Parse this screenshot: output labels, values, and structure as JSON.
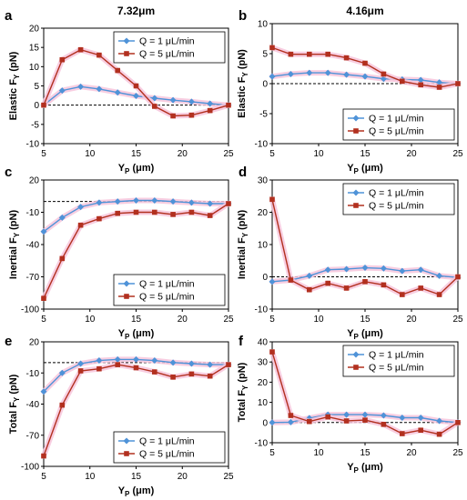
{
  "colors": {
    "blue": "#4f93d8",
    "red": "#b2301f",
    "shade": "#f7c6dc",
    "axis": "#000000",
    "zero": "#000000"
  },
  "chart_data": [
    {
      "id": "a",
      "type": "line",
      "letter": "a",
      "title": "7.32μm",
      "ylabel": "Elastic F",
      "ylabel_sub": "Y",
      "ylabel_tail": " (pN)",
      "xlabel": "Y",
      "xlabel_sub": "P",
      "xlabel_tail": " (μm)",
      "xlim": [
        5,
        25
      ],
      "ylim": [
        -10,
        20
      ],
      "xticks": [
        "5",
        "10",
        "15",
        "20",
        "25"
      ],
      "yticks": [
        "-10",
        "-5",
        "0",
        "5",
        "10",
        "15",
        "20"
      ],
      "legend": {
        "position": "top-right",
        "entries": [
          "Q = 1 μL/min",
          "Q = 5 μL/min"
        ]
      },
      "series": [
        {
          "name": "Q = 1 μL/min",
          "x": [
            5,
            7,
            9,
            11,
            13,
            15,
            17,
            19,
            21,
            23,
            25
          ],
          "y": [
            0,
            3.8,
            4.8,
            4.2,
            3.3,
            2.4,
            1.8,
            1.3,
            0.9,
            0.4,
            0
          ]
        },
        {
          "name": "Q = 5 μL/min",
          "x": [
            5,
            7,
            9,
            11,
            13,
            15,
            17,
            19,
            21,
            23,
            25
          ],
          "y": [
            0,
            11.8,
            14.4,
            13.0,
            9.0,
            5.0,
            -0.3,
            -2.8,
            -2.6,
            -1.4,
            0
          ]
        }
      ]
    },
    {
      "id": "b",
      "type": "line",
      "letter": "b",
      "title": "4.16μm",
      "ylabel": "Elastic F",
      "ylabel_sub": "Y",
      "ylabel_tail": " (pN)",
      "xlabel": "Y",
      "xlabel_sub": "P",
      "xlabel_tail": " (μm)",
      "xlim": [
        5,
        25
      ],
      "ylim": [
        -10,
        10
      ],
      "xticks": [
        "5",
        "10",
        "15",
        "20",
        "25"
      ],
      "yticks": [
        "-10",
        "-5",
        "0",
        "5",
        "10"
      ],
      "legend": {
        "position": "bottom-right",
        "entries": [
          "Q = 1 μL/min",
          "Q = 5 μL/min"
        ]
      },
      "series": [
        {
          "name": "Q = 1 μL/min",
          "x": [
            5,
            7,
            9,
            11,
            13,
            15,
            17,
            19,
            21,
            23,
            25
          ],
          "y": [
            1.2,
            1.6,
            1.8,
            1.8,
            1.5,
            1.2,
            0.8,
            0.7,
            0.6,
            0.2,
            0
          ]
        },
        {
          "name": "Q = 5 μL/min",
          "x": [
            5,
            7,
            9,
            11,
            13,
            15,
            17,
            19,
            21,
            23,
            25
          ],
          "y": [
            6.0,
            4.9,
            4.9,
            4.9,
            4.3,
            3.4,
            1.6,
            0.4,
            -0.2,
            -0.6,
            0
          ]
        }
      ]
    },
    {
      "id": "c",
      "type": "line",
      "letter": "c",
      "title": "",
      "ylabel": "Inertial F",
      "ylabel_sub": "Y",
      "ylabel_tail": " (pN)",
      "xlabel": "Y",
      "xlabel_sub": "P",
      "xlabel_tail": " (μm)",
      "xlim": [
        5,
        25
      ],
      "ylim": [
        -100,
        20
      ],
      "xticks": [
        "5",
        "10",
        "15",
        "20",
        "25"
      ],
      "yticks": [
        "-100",
        "-70",
        "-40",
        "-10",
        "20"
      ],
      "legend": {
        "position": "bottom-right",
        "entries": [
          "Q = 1 μL/min",
          "Q = 5 μL/min"
        ]
      },
      "series": [
        {
          "name": "Q = 1 μL/min",
          "x": [
            5,
            7,
            9,
            11,
            13,
            15,
            17,
            19,
            21,
            23,
            25
          ],
          "y": [
            -28,
            -15,
            -5,
            -1,
            0,
            1,
            1,
            0,
            -1,
            -2,
            -2
          ]
        },
        {
          "name": "Q = 5 μL/min",
          "x": [
            5,
            7,
            9,
            11,
            13,
            15,
            17,
            19,
            21,
            23,
            25
          ],
          "y": [
            -90,
            -53,
            -22,
            -16,
            -11,
            -10,
            -10,
            -12,
            -10,
            -13,
            -2
          ]
        }
      ]
    },
    {
      "id": "d",
      "type": "line",
      "letter": "d",
      "title": "",
      "ylabel": "Inertial F",
      "ylabel_sub": "Y",
      "ylabel_tail": " (pN)",
      "xlabel": "Y",
      "xlabel_sub": "P",
      "xlabel_tail": " (μm)",
      "xlim": [
        5,
        25
      ],
      "ylim": [
        -10,
        30
      ],
      "xticks": [
        "5",
        "10",
        "15",
        "20",
        "25"
      ],
      "yticks": [
        "-10",
        "0",
        "10",
        "20",
        "30"
      ],
      "legend": {
        "position": "top-right",
        "entries": [
          "Q = 1 μL/min",
          "Q = 5 μL/min"
        ]
      },
      "series": [
        {
          "name": "Q = 1 μL/min",
          "x": [
            5,
            7,
            9,
            11,
            13,
            15,
            17,
            19,
            21,
            23,
            25
          ],
          "y": [
            -1.5,
            -1,
            0.3,
            2.2,
            2.4,
            2.8,
            2.6,
            1.8,
            2.2,
            0.3,
            -0.2
          ]
        },
        {
          "name": "Q = 5 μL/min",
          "x": [
            5,
            7,
            9,
            11,
            13,
            15,
            17,
            19,
            21,
            23,
            25
          ],
          "y": [
            24,
            -1,
            -4,
            -2,
            -3.5,
            -1.5,
            -2.5,
            -5.5,
            -3.5,
            -5.5,
            0
          ]
        }
      ]
    },
    {
      "id": "e",
      "type": "line",
      "letter": "e",
      "title": "",
      "ylabel": "Total F",
      "ylabel_sub": "Y",
      "ylabel_tail": " (pN)",
      "xlabel": "Y",
      "xlabel_sub": "P",
      "xlabel_tail": " (μm)",
      "xlim": [
        5,
        25
      ],
      "ylim": [
        -100,
        20
      ],
      "xticks": [
        "5",
        "10",
        "15",
        "20",
        "25"
      ],
      "yticks": [
        "-100",
        "-70",
        "-40",
        "-10",
        "20"
      ],
      "legend": {
        "position": "bottom-right",
        "entries": [
          "Q = 1 μL/min",
          "Q = 5 μL/min"
        ]
      },
      "series": [
        {
          "name": "Q = 1 μL/min",
          "x": [
            5,
            7,
            9,
            11,
            13,
            15,
            17,
            19,
            21,
            23,
            25
          ],
          "y": [
            -28,
            -10,
            -1,
            2,
            3,
            3,
            2,
            0,
            -1,
            -2,
            -2
          ]
        },
        {
          "name": "Q = 5 μL/min",
          "x": [
            5,
            7,
            9,
            11,
            13,
            15,
            17,
            19,
            21,
            23,
            25
          ],
          "y": [
            -90,
            -41,
            -8,
            -6,
            -2,
            -5,
            -9,
            -14,
            -11,
            -13,
            -2
          ]
        }
      ]
    },
    {
      "id": "f",
      "type": "line",
      "letter": "f",
      "title": "",
      "ylabel": "Total F",
      "ylabel_sub": "Y",
      "ylabel_tail": " (pN)",
      "xlabel": "Y",
      "xlabel_sub": "P",
      "xlabel_tail": " (μm)",
      "xlim": [
        5,
        25
      ],
      "ylim": [
        -10,
        40
      ],
      "xticks": [
        "5",
        "10",
        "15",
        "20",
        "25"
      ],
      "yticks": [
        "-10",
        "0",
        "10",
        "20",
        "30",
        "40"
      ],
      "legend": {
        "position": "top-right",
        "entries": [
          "Q = 1 μL/min",
          "Q = 5 μL/min"
        ]
      },
      "series": [
        {
          "name": "Q = 1 μL/min",
          "x": [
            5,
            7,
            9,
            11,
            13,
            15,
            17,
            19,
            21,
            23,
            25
          ],
          "y": [
            0,
            0.2,
            2.2,
            3.9,
            3.9,
            3.9,
            3.5,
            2.4,
            2.4,
            0.8,
            0
          ]
        },
        {
          "name": "Q = 5 μL/min",
          "x": [
            5,
            7,
            9,
            11,
            13,
            15,
            17,
            19,
            21,
            23,
            25
          ],
          "y": [
            35,
            3.5,
            0.5,
            2.8,
            0.8,
            1.2,
            -0.9,
            -5.5,
            -3.8,
            -5.8,
            0
          ]
        }
      ]
    }
  ]
}
